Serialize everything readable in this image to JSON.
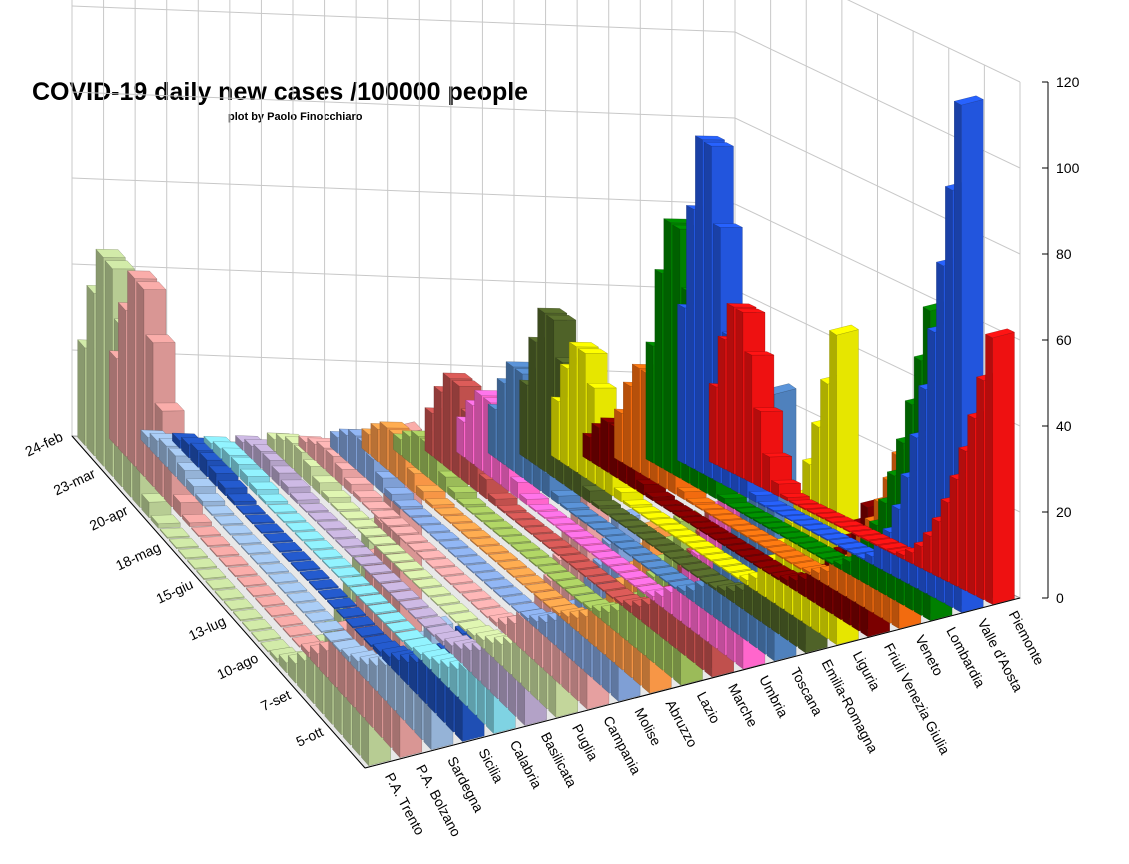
{
  "chart_data": {
    "type": "bar",
    "subtype": "3d-bar",
    "title": "COVID-19 daily new cases /100000 people",
    "subtitle": "plot by Paolo Finocchiaro",
    "zlim": [
      0,
      120
    ],
    "z_ticks": [
      0,
      20,
      40,
      60,
      80,
      100,
      120
    ],
    "time_ticks": [
      "24-feb",
      "23-mar",
      "20-apr",
      "18-mag",
      "15-giu",
      "13-lug",
      "10-ago",
      "7-set",
      "5-ott"
    ],
    "grid": true,
    "series": [
      {
        "name": "P.A. Trento",
        "color": "#b7cc93",
        "peak": 50,
        "latest": 55
      },
      {
        "name": "P.A. Bolzano",
        "color": "#d99694",
        "peak": 45,
        "latest": 75
      },
      {
        "name": "Sardegna",
        "color": "#95b3d7",
        "peak": 5,
        "latest": 28
      },
      {
        "name": "Sicilia",
        "color": "#1f4fb4",
        "peak": 4,
        "latest": 25
      },
      {
        "name": "Calabria",
        "color": "#7fd3e3",
        "peak": 3,
        "latest": 16
      },
      {
        "name": "Basilicata",
        "color": "#b3a2c7",
        "peak": 4,
        "latest": 24
      },
      {
        "name": "Puglia",
        "color": "#c3d69b",
        "peak": 6,
        "latest": 24
      },
      {
        "name": "Campania",
        "color": "#e6a0a0",
        "peak": 5,
        "latest": 55
      },
      {
        "name": "Molise",
        "color": "#7f9fd5",
        "peak": 8,
        "latest": 42
      },
      {
        "name": "Abruzzo",
        "color": "#f79646",
        "peak": 10,
        "latest": 38
      },
      {
        "name": "Lazio",
        "color": "#9bbb59",
        "peak": 8,
        "latest": 38
      },
      {
        "name": "Marche",
        "color": "#c0504d",
        "peak": 22,
        "latest": 38
      },
      {
        "name": "Umbria",
        "color": "#ff66cc",
        "peak": 18,
        "latest": 62
      },
      {
        "name": "Toscana",
        "color": "#4f81bd",
        "peak": 25,
        "latest": 62
      },
      {
        "name": "Emilia-Romagna",
        "color": "#4f6228",
        "peak": 38,
        "latest": 32
      },
      {
        "name": "Liguria",
        "color": "#e6e600",
        "peak": 30,
        "latest": 72
      },
      {
        "name": "Friuli Venezia Giulia",
        "color": "#7b0000",
        "peak": 12,
        "latest": 30
      },
      {
        "name": "Veneto",
        "color": "#f26b0f",
        "peak": 25,
        "latest": 40
      },
      {
        "name": "Lombardia",
        "color": "#008000",
        "peak": 60,
        "latest": 72
      },
      {
        "name": "Valle d'Aosta",
        "color": "#2255dd",
        "peak": 80,
        "latest": 118
      },
      {
        "name": "Piemonte",
        "color": "#ee1111",
        "peak": 40,
        "latest": 62
      }
    ]
  }
}
